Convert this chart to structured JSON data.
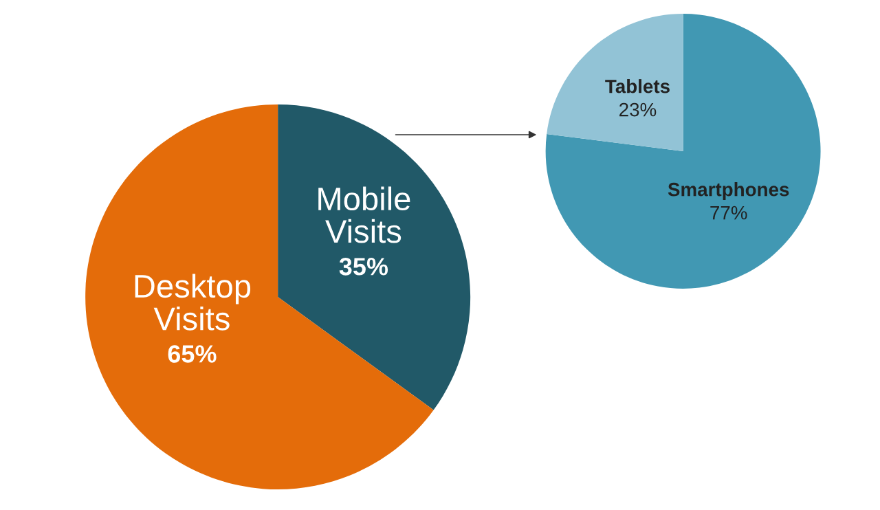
{
  "chart_data": [
    {
      "type": "pie",
      "categories": [
        "Mobile\nVisits",
        "Desktop\nVisits"
      ],
      "values": [
        35,
        65
      ],
      "value_labels": [
        "35%",
        "65%"
      ],
      "colors": [
        "#215968",
        "#e46c0a"
      ]
    },
    {
      "type": "pie",
      "categories": [
        "Smartphones",
        "Tablets"
      ],
      "values": [
        77,
        23
      ],
      "value_labels": [
        "77%",
        "23%"
      ],
      "colors": [
        "#4198b3",
        "#92c3d6"
      ]
    }
  ]
}
